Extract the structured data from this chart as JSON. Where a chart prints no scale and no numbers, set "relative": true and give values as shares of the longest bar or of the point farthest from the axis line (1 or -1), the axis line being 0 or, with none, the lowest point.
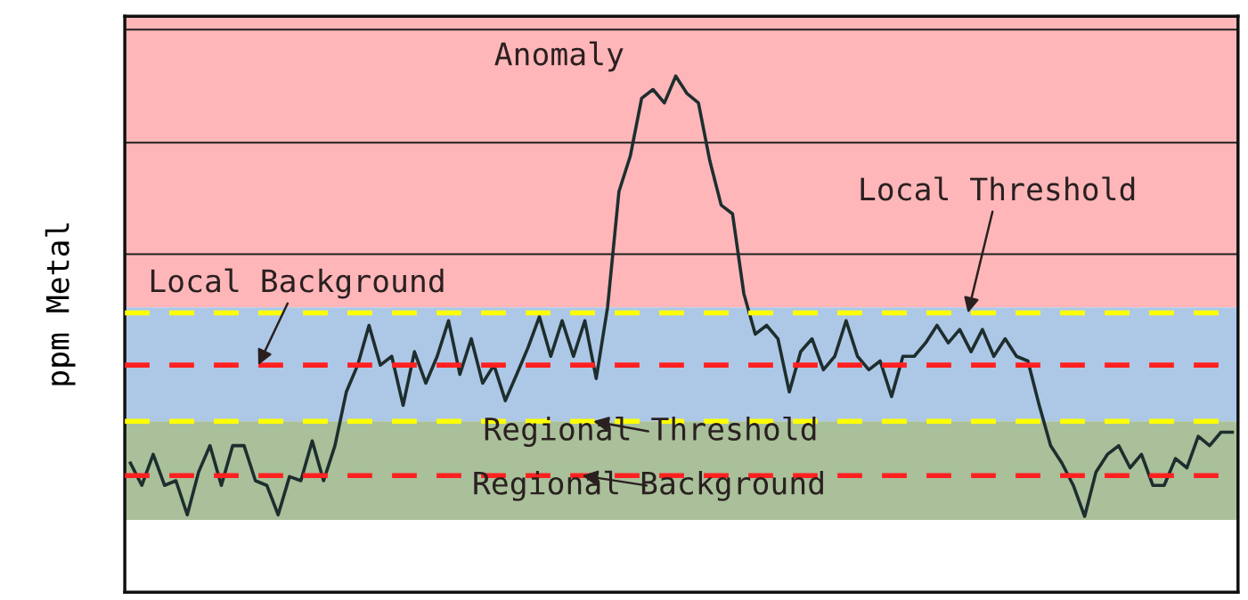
{
  "chart_data": {
    "type": "line",
    "relative": true,
    "ylabel": "ppm Metal",
    "annotations": [
      "Anomaly"
    ],
    "categories": [
      null,
      null,
      null,
      null,
      null,
      null,
      null,
      null,
      null,
      null,
      null,
      null,
      null,
      null,
      null,
      null,
      null,
      null,
      null,
      null,
      null,
      null,
      null,
      null,
      null,
      null,
      null,
      null,
      null,
      null,
      null,
      null,
      null,
      null,
      null,
      null,
      null,
      null,
      null,
      null,
      null,
      null,
      null,
      null,
      null,
      null,
      null,
      null,
      null,
      null,
      null,
      null,
      null,
      null,
      null,
      null,
      null,
      null,
      null,
      null,
      null,
      null,
      null,
      null,
      null,
      null,
      null,
      null,
      null,
      null,
      null,
      null,
      null,
      null,
      null,
      null,
      null,
      null,
      null,
      null,
      null,
      null,
      null,
      null,
      null,
      null,
      null,
      null,
      null,
      null,
      null,
      null,
      null,
      null,
      null,
      null,
      null,
      null
    ],
    "series": [
      {
        "color": "#1e2e2e",
        "values": [
          0.25,
          0.207,
          0.267,
          0.207,
          0.216,
          0.15,
          0.233,
          0.284,
          0.207,
          0.284,
          0.284,
          0.216,
          0.207,
          0.15,
          0.224,
          0.216,
          0.293,
          0.216,
          0.284,
          0.388,
          0.44,
          0.517,
          0.44,
          0.457,
          0.362,
          0.466,
          0.405,
          0.457,
          0.526,
          0.422,
          0.491,
          0.405,
          0.44,
          0.371,
          0.422,
          0.474,
          0.534,
          0.457,
          0.526,
          0.457,
          0.526,
          0.414,
          0.552,
          0.776,
          0.845,
          0.957,
          0.974,
          0.948,
          1.0,
          0.966,
          0.948,
          0.836,
          0.75,
          0.733,
          0.578,
          0.5,
          0.517,
          0.491,
          0.388,
          0.466,
          0.491,
          0.431,
          0.457,
          0.526,
          0.457,
          0.431,
          0.448,
          0.379,
          0.457,
          0.457,
          0.483,
          0.517,
          0.483,
          0.509,
          0.466,
          0.509,
          0.457,
          0.491,
          0.457,
          0.448,
          0.362,
          0.284,
          0.25,
          0.207,
          0.147,
          0.233,
          0.267,
          0.284,
          0.241,
          0.267,
          0.207,
          0.207,
          0.259,
          0.241,
          0.302,
          0.284,
          0.31,
          0.31
        ]
      }
    ],
    "bands": [
      {
        "axis": "y",
        "from": 0.552,
        "to": 1.116,
        "color": "#ffb6b9"
      },
      {
        "axis": "y",
        "from": 0.331,
        "to": 0.552,
        "color": "#adc8e6"
      },
      {
        "axis": "y",
        "from": 0.14,
        "to": 0.331,
        "color": "#a9c09a"
      }
    ],
    "ref_lines": [
      {
        "axis": "y",
        "value": 1.09,
        "color": "#1e1e1e",
        "line_style": "solid"
      },
      {
        "axis": "y",
        "value": 0.871,
        "color": "#1e1e1e",
        "line_style": "solid"
      },
      {
        "axis": "y",
        "value": 0.655,
        "color": "#1e1e1e",
        "line_style": "solid"
      },
      {
        "axis": "y",
        "value": 0.541,
        "label": "Local Threshold",
        "color": "#ffff00",
        "line_style": "dashed"
      },
      {
        "axis": "y",
        "value": 0.44,
        "label": "Local Background",
        "color": "#ff2020",
        "line_style": "dashed"
      },
      {
        "axis": "y",
        "value": 0.331,
        "label": "Regional Threshold",
        "color": "#ffff00",
        "line_style": "dashed"
      },
      {
        "axis": "y",
        "value": 0.226,
        "label": "Regional Background",
        "color": "#ff2020",
        "line_style": "dashed"
      }
    ]
  }
}
